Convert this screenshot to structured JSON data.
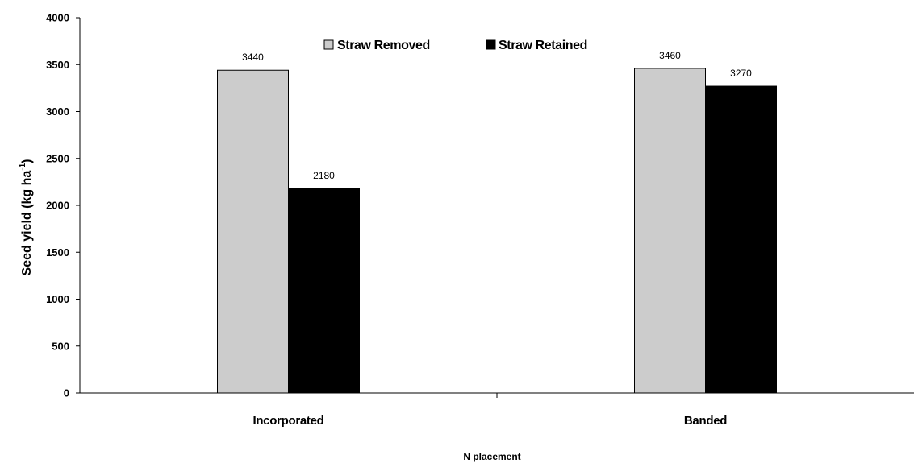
{
  "chart_data": {
    "type": "bar",
    "categories": [
      "Incorporated",
      "Banded"
    ],
    "series": [
      {
        "name": "Straw Removed",
        "values": [
          3440,
          3460
        ],
        "labels": [
          "3440",
          "3460"
        ],
        "color": "#cccccc"
      },
      {
        "name": "Straw Retained",
        "values": [
          2180,
          3270
        ],
        "labels": [
          "2180",
          "3270"
        ],
        "color": "#000000"
      }
    ],
    "xlabel": "N placement",
    "ylabel": "Seed yield (kg ha",
    "ylabel_superscript": "-1",
    "ylabel_suffix": ")",
    "ylim": [
      0,
      4000
    ],
    "yticks": [
      "0",
      "500",
      "1000",
      "1500",
      "2000",
      "2500",
      "3000",
      "3500",
      "4000"
    ],
    "grid": false,
    "legend_position": "top-center"
  }
}
